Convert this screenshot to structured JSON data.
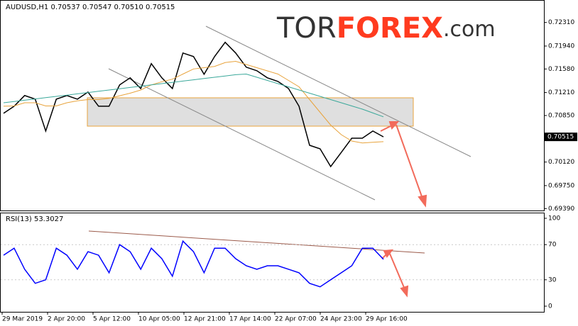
{
  "chart_data": [
    {
      "type": "line",
      "title": "AUDUSD,H1  0.70537 0.70547 0.70510 0.70515",
      "watermark": {
        "prefix": "TOR",
        "main": "FOREX",
        "suffix": ".com"
      },
      "series": [
        {
          "color": "#000000",
          "values": [
            0.70884,
            0.70995,
            0.71163,
            0.71107,
            0.70606,
            0.71107,
            0.71163,
            0.71107,
            0.71218,
            0.70995,
            0.70995,
            0.7133,
            0.71441,
            0.71274,
            0.71664,
            0.71441,
            0.71274,
            0.71831,
            0.71775,
            0.71497,
            0.71775,
            0.71998,
            0.71831,
            0.71608,
            0.71553,
            0.71441,
            0.71385,
            0.71274,
            0.70995,
            0.70383,
            0.70327,
            0.70049,
            0.70271,
            0.70494,
            0.70494,
            0.70606,
            0.70515
          ]
        },
        {
          "color": "#e8a33c",
          "values": [
            0.70995,
            0.71,
            0.7105,
            0.7105,
            0.71,
            0.71,
            0.7105,
            0.7108,
            0.711,
            0.711,
            0.7112,
            0.7116,
            0.712,
            0.7125,
            0.7133,
            0.7138,
            0.7142,
            0.715,
            0.7158,
            0.716,
            0.7162,
            0.7168,
            0.717,
            0.7165,
            0.716,
            0.7155,
            0.715,
            0.714,
            0.713,
            0.711,
            0.709,
            0.707,
            0.7055,
            0.7045,
            0.7042,
            0.7043,
            0.7044
          ]
        },
        {
          "color": "#3aa89a",
          "values": [
            0.7105,
            0.7107,
            0.7109,
            0.7111,
            0.7113,
            0.7115,
            0.7117,
            0.7119,
            0.7121,
            0.7123,
            0.7125,
            0.7127,
            0.7129,
            0.7131,
            0.7133,
            0.7135,
            0.7137,
            0.7139,
            0.7141,
            0.7143,
            0.7145,
            0.7147,
            0.7149,
            0.715,
            0.7145,
            0.714,
            0.7135,
            0.713,
            0.7125,
            0.712,
            0.7115,
            0.711,
            0.7105,
            0.71,
            0.7095,
            0.7089,
            0.7083
          ]
        }
      ],
      "ylim": [
        0.6936,
        0.7264
      ],
      "yticks": [
        {
          "value": 0.7231,
          "label": "0.72310"
        },
        {
          "value": 0.7194,
          "label": "0.71940"
        },
        {
          "value": 0.7158,
          "label": "0.71580"
        },
        {
          "value": 0.7121,
          "label": "0.71210"
        },
        {
          "value": 0.7085,
          "label": "0.70850"
        },
        {
          "value": 0.7012,
          "label": "0.70120"
        },
        {
          "value": 0.6975,
          "label": "0.69750"
        },
        {
          "value": 0.6939,
          "label": "0.69390"
        }
      ],
      "last_price": 0.70515
    },
    {
      "type": "line",
      "title": "RSI(13) 53.3027",
      "series": [
        {
          "color": "#0000ff",
          "values": [
            58,
            66,
            42,
            26,
            30,
            66,
            58,
            42,
            62,
            58,
            38,
            70,
            62,
            42,
            66,
            54,
            34,
            74,
            62,
            38,
            66,
            66,
            54,
            46,
            42,
            46,
            46,
            42,
            38,
            26,
            22,
            30,
            38,
            46,
            66,
            66,
            53.3027
          ]
        }
      ],
      "ylim": [
        0,
        100
      ],
      "yticks": [
        100,
        70,
        30,
        0
      ],
      "x_labels": [
        "29 Mar 2019",
        "2 Apr 20:00",
        "5 Apr 12:00",
        "10 Apr 05:00",
        "12 Apr 21:00",
        "17 Apr 14:00",
        "22 Apr 07:00",
        "24 Apr 23:00",
        "29 Apr 16:00"
      ]
    }
  ]
}
